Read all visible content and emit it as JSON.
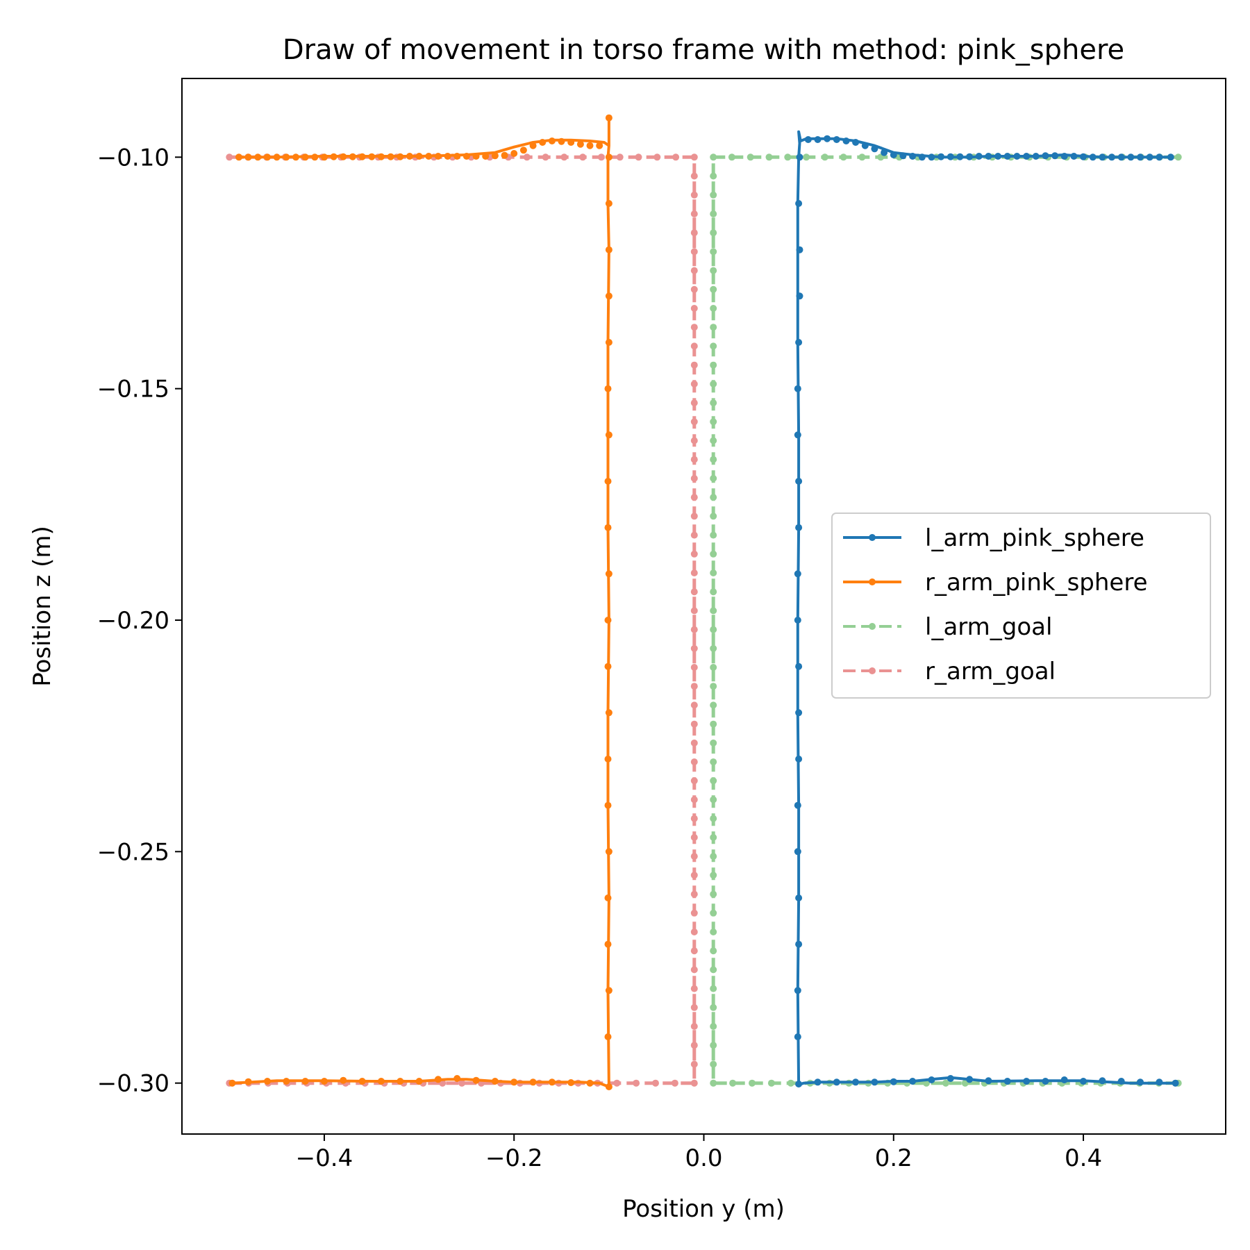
{
  "chart_data": {
    "type": "line",
    "title": "Draw of movement in torso frame with method: pink_sphere",
    "xlabel": "Position y (m)",
    "ylabel": "Position z (m)",
    "xlim": [
      -0.55,
      0.55
    ],
    "ylim": [
      -0.311,
      -0.083
    ],
    "xticks": [
      {
        "value": -0.4,
        "label": "−0.4"
      },
      {
        "value": -0.2,
        "label": "−0.2"
      },
      {
        "value": 0.0,
        "label": "0.0"
      },
      {
        "value": 0.2,
        "label": "0.2"
      },
      {
        "value": 0.4,
        "label": "0.4"
      }
    ],
    "yticks": [
      {
        "value": -0.1,
        "label": "−0.10"
      },
      {
        "value": -0.15,
        "label": "−0.15"
      },
      {
        "value": -0.2,
        "label": "−0.20"
      },
      {
        "value": -0.25,
        "label": "−0.25"
      },
      {
        "value": -0.3,
        "label": "−0.30"
      }
    ],
    "grid": false,
    "legend_position": "center-right",
    "series": [
      {
        "name": "l_arm_pink_sphere",
        "color": "#1f77b4",
        "style": "solid",
        "alpha": 1.0,
        "x": [
          0.497,
          0.45,
          0.4,
          0.35,
          0.3,
          0.27,
          0.26,
          0.24,
          0.22,
          0.2,
          0.18,
          0.16,
          0.14,
          0.12,
          0.105,
          0.1,
          0.099,
          0.1,
          0.1,
          0.099,
          0.099,
          0.1,
          0.1,
          0.099,
          0.099,
          0.099,
          0.1,
          0.101,
          0.1,
          0.101,
          0.102,
          0.108,
          0.12,
          0.14,
          0.16,
          0.18,
          0.2,
          0.22,
          0.25,
          0.28,
          0.3,
          0.32,
          0.35,
          0.38,
          0.4,
          0.42,
          0.45,
          0.48,
          0.492
        ],
        "y": [
          -0.3,
          -0.3,
          -0.2995,
          -0.2995,
          -0.2996,
          -0.299,
          -0.2988,
          -0.2992,
          -0.2996,
          -0.2996,
          -0.2998,
          -0.2998,
          -0.2998,
          -0.2998,
          -0.3,
          -0.3004,
          -0.28,
          -0.26,
          -0.24,
          -0.22,
          -0.2,
          -0.18,
          -0.16,
          -0.14,
          -0.12,
          -0.11,
          -0.1,
          -0.097,
          -0.0945,
          -0.0955,
          -0.0965,
          -0.096,
          -0.096,
          -0.096,
          -0.0965,
          -0.0975,
          -0.099,
          -0.0995,
          -0.1,
          -0.1,
          -0.0998,
          -0.0998,
          -0.0998,
          -0.0995,
          -0.0998,
          -0.1,
          -0.1,
          -0.1,
          -0.1
        ],
        "marker_x": [
          0.497,
          0.48,
          0.46,
          0.44,
          0.42,
          0.4,
          0.38,
          0.36,
          0.34,
          0.32,
          0.3,
          0.28,
          0.26,
          0.24,
          0.22,
          0.2,
          0.18,
          0.16,
          0.14,
          0.12,
          0.1,
          0.099,
          0.099,
          0.1,
          0.1,
          0.099,
          0.099,
          0.1,
          0.1,
          0.1,
          0.099,
          0.099,
          0.1,
          0.1,
          0.099,
          0.099,
          0.1,
          0.101,
          0.101,
          0.1,
          0.101,
          0.11,
          0.12,
          0.13,
          0.14,
          0.15,
          0.16,
          0.17,
          0.18,
          0.19,
          0.2,
          0.21,
          0.22,
          0.23,
          0.24,
          0.25,
          0.26,
          0.27,
          0.28,
          0.29,
          0.3,
          0.31,
          0.32,
          0.33,
          0.34,
          0.35,
          0.36,
          0.37,
          0.38,
          0.39,
          0.4,
          0.41,
          0.42,
          0.43,
          0.44,
          0.45,
          0.46,
          0.47,
          0.48,
          0.492
        ],
        "marker_y": [
          -0.3,
          -0.2998,
          -0.2998,
          -0.2996,
          -0.2995,
          -0.2996,
          -0.2993,
          -0.2996,
          -0.2996,
          -0.2996,
          -0.2995,
          -0.2992,
          -0.299,
          -0.2993,
          -0.2996,
          -0.2997,
          -0.2998,
          -0.2998,
          -0.2998,
          -0.2998,
          -0.3002,
          -0.29,
          -0.28,
          -0.27,
          -0.26,
          -0.25,
          -0.24,
          -0.23,
          -0.22,
          -0.21,
          -0.2,
          -0.19,
          -0.18,
          -0.17,
          -0.16,
          -0.15,
          -0.14,
          -0.13,
          -0.12,
          -0.11,
          -0.1,
          -0.0962,
          -0.0962,
          -0.096,
          -0.0962,
          -0.0965,
          -0.0968,
          -0.0975,
          -0.0982,
          -0.099,
          -0.0995,
          -0.0997,
          -0.0998,
          -0.1,
          -0.1,
          -0.0999,
          -0.0999,
          -0.0999,
          -0.0999,
          -0.0998,
          -0.0998,
          -0.0998,
          -0.0998,
          -0.0998,
          -0.0998,
          -0.0998,
          -0.0997,
          -0.0997,
          -0.0998,
          -0.0998,
          -0.0999,
          -0.1,
          -0.1,
          -0.1,
          -0.1,
          -0.1,
          -0.1,
          -0.1,
          -0.1,
          -0.1
        ]
      },
      {
        "name": "r_arm_pink_sphere",
        "color": "#ff7f0e",
        "style": "solid",
        "alpha": 1.0,
        "x": [
          -0.497,
          -0.45,
          -0.4,
          -0.35,
          -0.3,
          -0.27,
          -0.25,
          -0.22,
          -0.2,
          -0.16,
          -0.13,
          -0.11,
          -0.1,
          -0.101,
          -0.1,
          -0.101,
          -0.101,
          -0.1,
          -0.101,
          -0.101,
          -0.101,
          -0.1,
          -0.101,
          -0.101,
          -0.1,
          -0.1,
          -0.1,
          -0.1,
          -0.105,
          -0.12,
          -0.14,
          -0.16,
          -0.18,
          -0.2,
          -0.22,
          -0.25,
          -0.3,
          -0.35,
          -0.4,
          -0.45,
          -0.49
        ],
        "y": [
          -0.3,
          -0.2995,
          -0.2995,
          -0.2996,
          -0.2996,
          -0.2992,
          -0.2992,
          -0.2996,
          -0.2998,
          -0.2998,
          -0.2998,
          -0.3,
          -0.3008,
          -0.28,
          -0.26,
          -0.24,
          -0.22,
          -0.2,
          -0.18,
          -0.16,
          -0.14,
          -0.12,
          -0.11,
          -0.1,
          -0.0975,
          -0.0915,
          -0.0955,
          -0.0975,
          -0.0968,
          -0.0965,
          -0.0963,
          -0.0963,
          -0.0968,
          -0.0978,
          -0.099,
          -0.0995,
          -0.0998,
          -0.0998,
          -0.0998,
          -0.1,
          -0.1
        ],
        "marker_x": [
          -0.497,
          -0.48,
          -0.46,
          -0.44,
          -0.42,
          -0.4,
          -0.38,
          -0.36,
          -0.34,
          -0.32,
          -0.3,
          -0.28,
          -0.26,
          -0.24,
          -0.22,
          -0.2,
          -0.18,
          -0.16,
          -0.14,
          -0.12,
          -0.1,
          -0.101,
          -0.1,
          -0.101,
          -0.101,
          -0.1,
          -0.101,
          -0.101,
          -0.1,
          -0.101,
          -0.101,
          -0.1,
          -0.101,
          -0.101,
          -0.1,
          -0.101,
          -0.1,
          -0.1,
          -0.1,
          -0.1,
          -0.1,
          -0.1,
          -0.11,
          -0.12,
          -0.13,
          -0.14,
          -0.15,
          -0.16,
          -0.17,
          -0.18,
          -0.19,
          -0.2,
          -0.21,
          -0.22,
          -0.23,
          -0.24,
          -0.25,
          -0.26,
          -0.27,
          -0.28,
          -0.29,
          -0.3,
          -0.31,
          -0.32,
          -0.33,
          -0.34,
          -0.35,
          -0.36,
          -0.37,
          -0.38,
          -0.39,
          -0.4,
          -0.41,
          -0.42,
          -0.43,
          -0.44,
          -0.45,
          -0.46,
          -0.47,
          -0.48,
          -0.49
        ],
        "marker_y": [
          -0.3,
          -0.2997,
          -0.2996,
          -0.2996,
          -0.2996,
          -0.2996,
          -0.2994,
          -0.2996,
          -0.2996,
          -0.2996,
          -0.2996,
          -0.2992,
          -0.299,
          -0.2994,
          -0.2996,
          -0.2998,
          -0.2998,
          -0.2998,
          -0.2999,
          -0.3,
          -0.3008,
          -0.29,
          -0.28,
          -0.27,
          -0.26,
          -0.25,
          -0.24,
          -0.23,
          -0.22,
          -0.21,
          -0.2,
          -0.19,
          -0.18,
          -0.17,
          -0.16,
          -0.15,
          -0.14,
          -0.13,
          -0.12,
          -0.11,
          -0.1,
          -0.0915,
          -0.0975,
          -0.0975,
          -0.0972,
          -0.0968,
          -0.0966,
          -0.0965,
          -0.0968,
          -0.0975,
          -0.0985,
          -0.0992,
          -0.0996,
          -0.0997,
          -0.0998,
          -0.0998,
          -0.0998,
          -0.0998,
          -0.0998,
          -0.0998,
          -0.0998,
          -0.0998,
          -0.0998,
          -0.0999,
          -0.0999,
          -0.0999,
          -0.0999,
          -0.0999,
          -0.0999,
          -0.0999,
          -0.0999,
          -0.1,
          -0.1,
          -0.1,
          -0.1,
          -0.1,
          -0.1,
          -0.1,
          -0.1,
          -0.1,
          -0.1
        ]
      },
      {
        "name": "l_arm_goal",
        "color": "#2ca02c",
        "style": "dashed",
        "alpha": 0.5,
        "x": [
          0.5,
          0.01,
          0.01,
          0.5
        ],
        "y": [
          -0.3,
          -0.3,
          -0.1,
          -0.1
        ],
        "marker_count": [
          24,
          49,
          25
        ]
      },
      {
        "name": "r_arm_goal",
        "color": "#d62728",
        "style": "dashed",
        "alpha": 0.5,
        "x": [
          -0.5,
          -0.01,
          -0.01,
          -0.5
        ],
        "y": [
          -0.3,
          -0.3,
          -0.1,
          -0.1
        ],
        "marker_count": [
          24,
          49,
          25
        ]
      }
    ]
  }
}
